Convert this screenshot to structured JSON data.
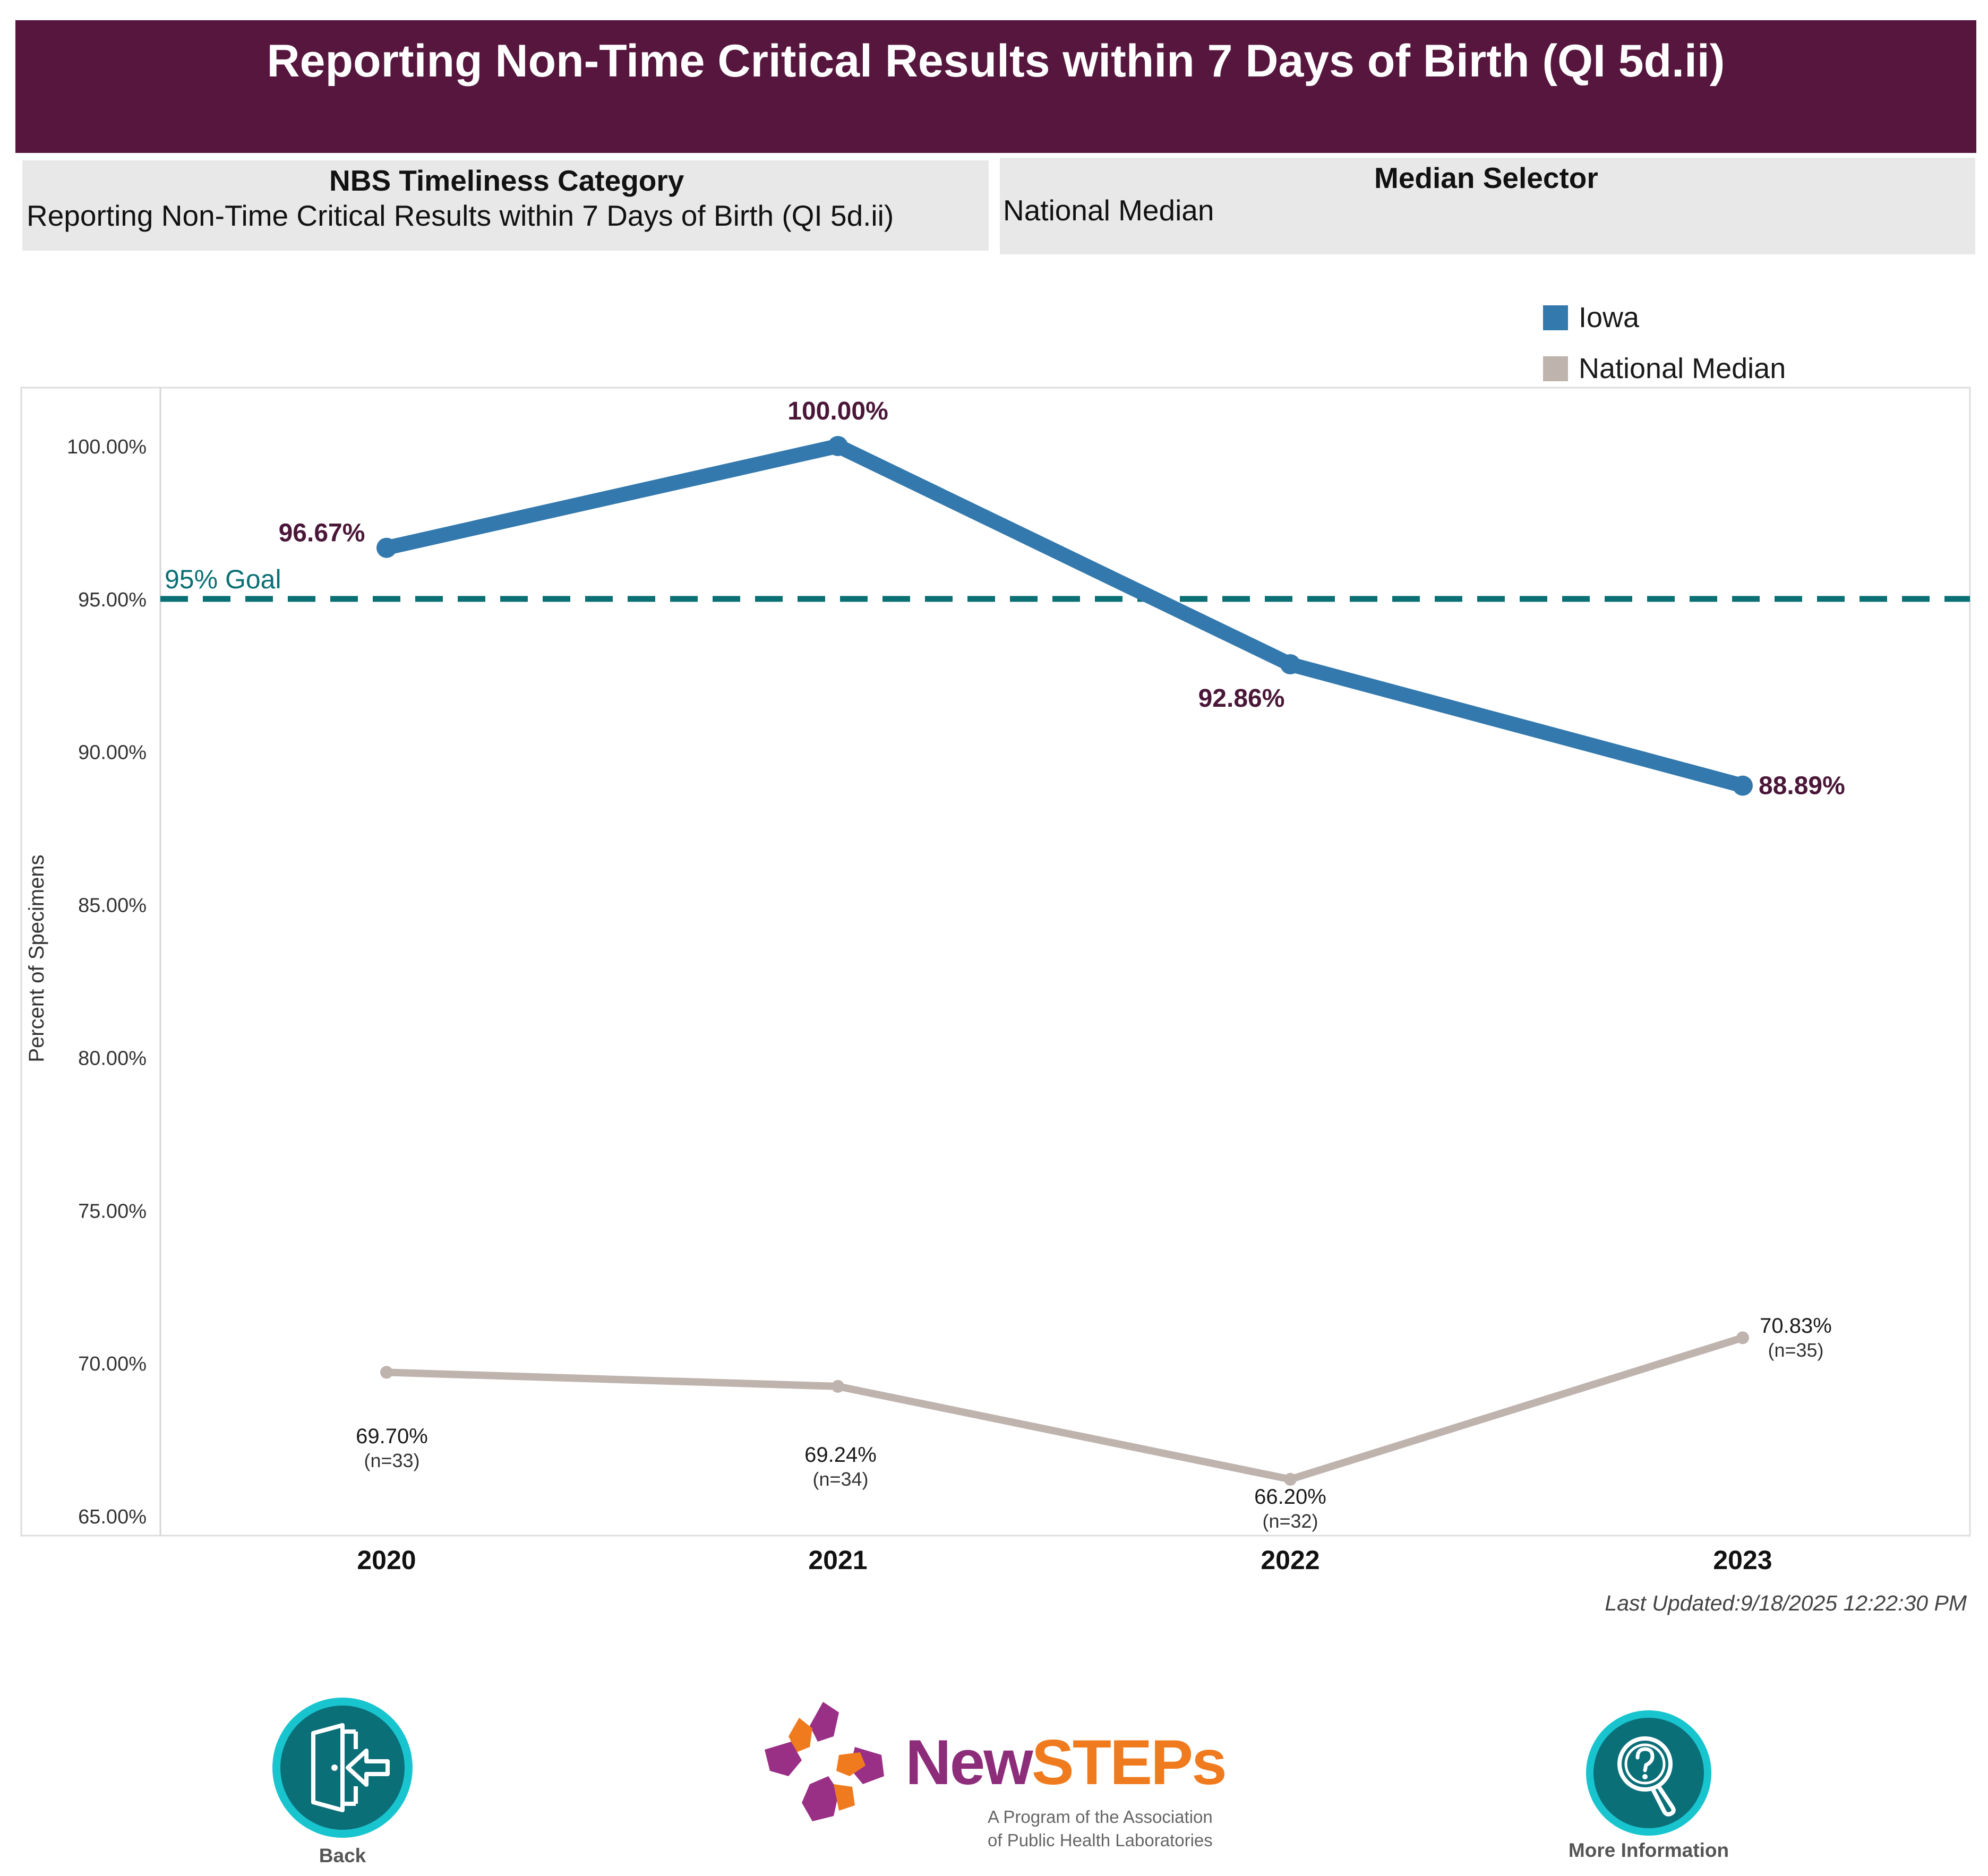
{
  "header": {
    "title": "Reporting Non-Time Critical Results within 7 Days of Birth (QI 5d.ii)"
  },
  "filters": {
    "category": {
      "label": "NBS Timeliness Category",
      "value": "Reporting Non-Time Critical Results within 7 Days of Birth (QI 5d.ii)"
    },
    "median": {
      "label": "Median Selector",
      "value": "National Median"
    }
  },
  "colors": {
    "header_bg": "#56163e",
    "iowa": "#3379ae",
    "national": "#bfb3ae",
    "goal": "#0b7074",
    "iowa_label": "#4a1738",
    "filter_bg": "#e8e8e8"
  },
  "chart_data": {
    "type": "line",
    "categories": [
      "2020",
      "2021",
      "2022",
      "2023"
    ],
    "ylabel": "Percent of Specimens",
    "ylim": [
      65,
      100
    ],
    "yticks": [
      "65.00%",
      "70.00%",
      "75.00%",
      "80.00%",
      "85.00%",
      "90.00%",
      "95.00%",
      "100.00%"
    ],
    "ytick_values": [
      65,
      70,
      75,
      80,
      85,
      90,
      95,
      100
    ],
    "legend_position": "top-right",
    "grid": false,
    "goal": {
      "value": 95,
      "label": "95% Goal"
    },
    "series": [
      {
        "name": "Iowa",
        "values": [
          96.67,
          100.0,
          92.86,
          88.89
        ],
        "labels": [
          "96.67%",
          "100.00%",
          "92.86%",
          "88.89%"
        ]
      },
      {
        "name": "National Median",
        "values": [
          69.7,
          69.24,
          66.2,
          70.83
        ],
        "labels": [
          "69.70%",
          "69.24%",
          "66.20%",
          "70.83%"
        ],
        "counts": [
          "(n=33)",
          "(n=34)",
          "(n=32)",
          "(n=35)"
        ]
      }
    ]
  },
  "last_updated": "Last Updated:9/18/2025 12:22:30 PM",
  "footer": {
    "back_label": "Back",
    "back_icon": "exit-door-icon",
    "info_label": "More Information",
    "info_icon": "question-magnifier-icon",
    "logo": {
      "word_new": "New",
      "word_steps": "STEPs",
      "tagline_1": "A Program of the Association",
      "tagline_2": "of Public Health Laboratories"
    }
  }
}
